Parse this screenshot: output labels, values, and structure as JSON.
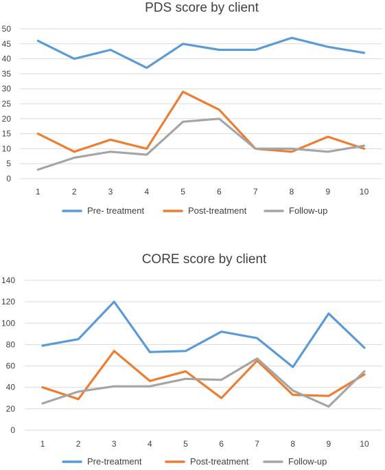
{
  "chart_data": [
    {
      "type": "line",
      "title": "PDS score by client",
      "xlabel": "",
      "ylabel": "",
      "categories": [
        "1",
        "2",
        "3",
        "4",
        "5",
        "6",
        "7",
        "8",
        "9",
        "10"
      ],
      "ylim": [
        0,
        50
      ],
      "yticks": [
        0,
        5,
        10,
        15,
        20,
        25,
        30,
        35,
        40,
        45,
        50
      ],
      "grid": true,
      "legend": "bottom",
      "series": [
        {
          "name": "Pre- treatment",
          "color": "#5B9BD5",
          "values": [
            46,
            40,
            43,
            37,
            45,
            43,
            43,
            47,
            44,
            42
          ]
        },
        {
          "name": "Post-treatment",
          "color": "#ED7D31",
          "values": [
            15,
            9,
            13,
            10,
            29,
            23,
            10,
            9,
            14,
            10
          ]
        },
        {
          "name": "Follow-up",
          "color": "#A5A5A5",
          "values": [
            3,
            7,
            9,
            8,
            19,
            20,
            10,
            10,
            9,
            11
          ]
        }
      ]
    },
    {
      "type": "line",
      "title": "CORE score by client",
      "xlabel": "",
      "ylabel": "",
      "categories": [
        "1",
        "2",
        "3",
        "4",
        "5",
        "6",
        "7",
        "8",
        "9",
        "10"
      ],
      "ylim": [
        0,
        140
      ],
      "yticks": [
        0,
        20,
        40,
        60,
        80,
        100,
        120,
        140
      ],
      "grid": true,
      "legend": "bottom",
      "series": [
        {
          "name": "Pre-treatment",
          "color": "#5B9BD5",
          "values": [
            79,
            85,
            120,
            73,
            74,
            92,
            86,
            59,
            109,
            77
          ]
        },
        {
          "name": "Post-treatment",
          "color": "#ED7D31",
          "values": [
            40,
            29,
            74,
            46,
            55,
            30,
            65,
            33,
            32,
            52
          ]
        },
        {
          "name": "Follow-up",
          "color": "#A5A5A5",
          "values": [
            25,
            36,
            41,
            41,
            48,
            47,
            67,
            37,
            22,
            55
          ]
        }
      ]
    }
  ]
}
